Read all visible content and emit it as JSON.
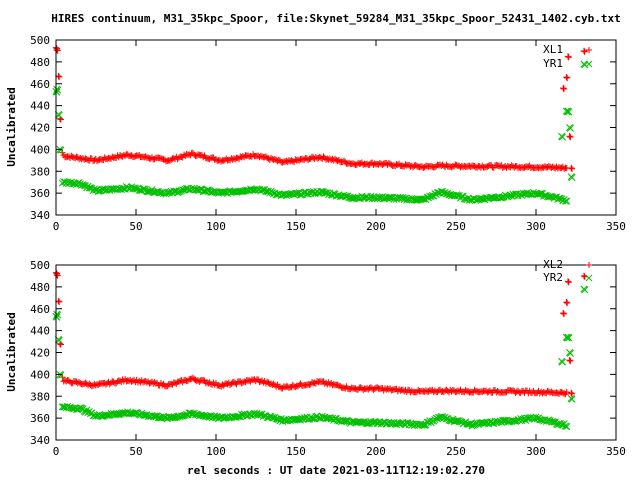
{
  "title": "HIRES continuum, M31_35kpc_Spoor, file:Skynet_59284_M31_35kpc_Spoor_52431_1402.cyb.txt",
  "xlabel": "rel seconds : UT date 2021-03-11T12:19:02.270",
  "colors": {
    "red": "#ff0000",
    "green": "#00c000"
  },
  "chart_data": [
    {
      "type": "scatter",
      "ylabel": "Uncalibrated",
      "xlim": [
        0,
        350
      ],
      "ylim": [
        340,
        500
      ],
      "xticks": [
        0,
        50,
        100,
        150,
        200,
        250,
        300,
        350
      ],
      "yticks": [
        340,
        360,
        380,
        400,
        420,
        440,
        460,
        480,
        500
      ],
      "legend_position": "top-right",
      "series": [
        {
          "name": "XL1",
          "color": "red",
          "marker": "plus",
          "baseline": [
            [
              0,
              493
            ],
            [
              1,
              490
            ],
            [
              2,
              467
            ],
            [
              3,
              430
            ],
            [
              4,
              397
            ],
            [
              5,
              394
            ],
            [
              25,
              390
            ],
            [
              45,
              395
            ],
            [
              70,
              390
            ],
            [
              85,
              396
            ],
            [
              103,
              390
            ],
            [
              125,
              395
            ],
            [
              142,
              388
            ],
            [
              165,
              393
            ],
            [
              185,
              387
            ],
            [
              200,
              387
            ],
            [
              230,
              384
            ],
            [
              240,
              385
            ],
            [
              300,
              384
            ],
            [
              320,
              383
            ]
          ],
          "spikes": [
            [
              0,
              493
            ],
            [
              0.5,
              491
            ],
            [
              1.5,
              467
            ],
            [
              2.5,
              428
            ],
            [
              317,
              456
            ],
            [
              319,
              466
            ],
            [
              320,
              485
            ],
            [
              321,
              412
            ],
            [
              322,
              383
            ],
            [
              330,
              490
            ]
          ]
        },
        {
          "name": "YR1",
          "color": "green",
          "marker": "cross",
          "baseline": [
            [
              3,
              370
            ],
            [
              15,
              369
            ],
            [
              25,
              362
            ],
            [
              45,
              365
            ],
            [
              70,
              360
            ],
            [
              85,
              364
            ],
            [
              103,
              360
            ],
            [
              125,
              364
            ],
            [
              142,
              358
            ],
            [
              165,
              361
            ],
            [
              185,
              356
            ],
            [
              200,
              356
            ],
            [
              230,
              354
            ],
            [
              240,
              361
            ],
            [
              260,
              354
            ],
            [
              300,
              360
            ],
            [
              320,
              353
            ]
          ],
          "spikes": [
            [
              0,
              453
            ],
            [
              0.5,
              455
            ],
            [
              1.5,
              432
            ],
            [
              2.5,
              400
            ],
            [
              316,
              412
            ],
            [
              319,
              435
            ],
            [
              320,
              435
            ],
            [
              321,
              420
            ],
            [
              322,
              375
            ],
            [
              330,
              478
            ]
          ]
        }
      ]
    },
    {
      "type": "scatter",
      "ylabel": "Uncalibrated",
      "xlim": [
        0,
        350
      ],
      "ylim": [
        340,
        500
      ],
      "xticks": [
        0,
        50,
        100,
        150,
        200,
        250,
        300,
        350
      ],
      "yticks": [
        340,
        360,
        380,
        400,
        420,
        440,
        460,
        480,
        500
      ],
      "legend_position": "top-right",
      "series": [
        {
          "name": "XL2",
          "color": "red",
          "marker": "plus",
          "baseline": [
            [
              0,
              493
            ],
            [
              1,
              490
            ],
            [
              2,
              467
            ],
            [
              3,
              430
            ],
            [
              4,
              397
            ],
            [
              5,
              394
            ],
            [
              25,
              390
            ],
            [
              45,
              395
            ],
            [
              70,
              390
            ],
            [
              85,
              396
            ],
            [
              103,
              390
            ],
            [
              125,
              395
            ],
            [
              142,
              388
            ],
            [
              165,
              393
            ],
            [
              185,
              387
            ],
            [
              200,
              387
            ],
            [
              230,
              384
            ],
            [
              240,
              385
            ],
            [
              300,
              384
            ],
            [
              320,
              383
            ]
          ],
          "spikes": [
            [
              0,
              493
            ],
            [
              0.5,
              491
            ],
            [
              1.5,
              467
            ],
            [
              2.5,
              428
            ],
            [
              317,
              456
            ],
            [
              319,
              466
            ],
            [
              320,
              485
            ],
            [
              321,
              413
            ],
            [
              322,
              383
            ],
            [
              330,
              490
            ]
          ]
        },
        {
          "name": "YR2",
          "color": "green",
          "marker": "cross",
          "baseline": [
            [
              3,
              370
            ],
            [
              15,
              369
            ],
            [
              25,
              362
            ],
            [
              45,
              365
            ],
            [
              70,
              360
            ],
            [
              85,
              364
            ],
            [
              103,
              360
            ],
            [
              125,
              364
            ],
            [
              142,
              358
            ],
            [
              165,
              361
            ],
            [
              185,
              356
            ],
            [
              200,
              356
            ],
            [
              230,
              354
            ],
            [
              240,
              361
            ],
            [
              260,
              354
            ],
            [
              300,
              360
            ],
            [
              320,
              353
            ]
          ],
          "spikes": [
            [
              0,
              453
            ],
            [
              0.5,
              455
            ],
            [
              1.5,
              432
            ],
            [
              2.5,
              400
            ],
            [
              316,
              412
            ],
            [
              319,
              434
            ],
            [
              320,
              434
            ],
            [
              321,
              420
            ],
            [
              322,
              378
            ],
            [
              330,
              478
            ]
          ]
        }
      ]
    }
  ]
}
